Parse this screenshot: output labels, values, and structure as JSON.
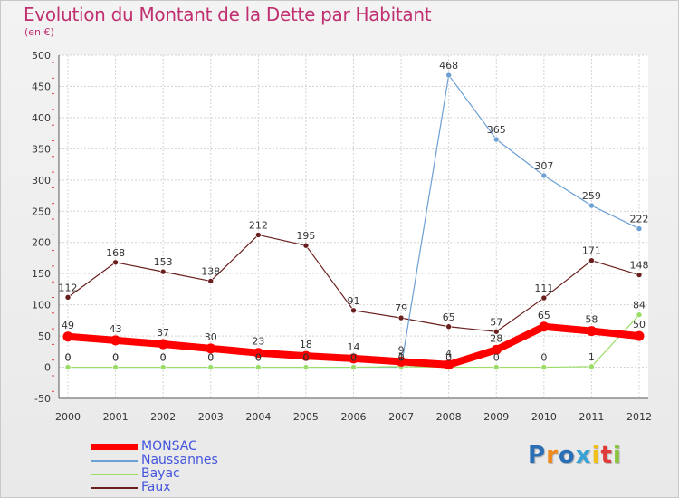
{
  "title": "Evolution du Montant de la Dette par Habitant",
  "subtitle": "(en €)",
  "logo": {
    "text": "Proxiti",
    "colors": [
      "#2a6fb5",
      "#f08a1c",
      "#2a6fb5",
      "#3aa3d6",
      "#f0c01c",
      "#e03a3a",
      "#8cc43c"
    ]
  },
  "chart_data": {
    "type": "line",
    "x": [
      "2000",
      "2001",
      "2002",
      "2003",
      "2004",
      "2005",
      "2006",
      "2007",
      "2008",
      "2009",
      "2010",
      "2011",
      "2012"
    ],
    "ylim": [
      -50,
      500
    ],
    "yticks": [
      "-50",
      "0",
      "50",
      "100",
      "150",
      "200",
      "250",
      "300",
      "350",
      "400",
      "450",
      "500"
    ],
    "grid": true,
    "legend": "bottom-left",
    "series": [
      {
        "name": "MONSAC",
        "color": "#ff0000",
        "width": 8,
        "marker": 5.5,
        "values": [
          49,
          43,
          37,
          30,
          23,
          18,
          14,
          9,
          4,
          28,
          65,
          58,
          50
        ],
        "labels": [
          "49",
          "43",
          "37",
          "30",
          "23",
          "18",
          "14",
          "9",
          "4",
          "28",
          "65",
          "58",
          "50"
        ]
      },
      {
        "name": "Naussannes",
        "color": "#6c9fd3",
        "width": 1.2,
        "marker": 3,
        "values": [
          0,
          0,
          0,
          0,
          0,
          0,
          0,
          0,
          468,
          365,
          307,
          259,
          222
        ],
        "labels": [
          "0",
          "0",
          "0",
          "0",
          "0",
          "0",
          "0",
          "0",
          "468",
          "365",
          "307",
          "259",
          "222"
        ]
      },
      {
        "name": "Bayac",
        "color": "#99dd66",
        "width": 1.2,
        "marker": 3,
        "values": [
          0,
          0,
          0,
          0,
          0,
          0,
          0,
          1,
          0,
          0,
          0,
          1,
          84
        ],
        "labels": [
          "0",
          "0",
          "0",
          "0",
          "0",
          "0",
          "0",
          "1",
          "0",
          "0",
          "0",
          "1",
          "84"
        ]
      },
      {
        "name": "Faux",
        "color": "#6a1f1f",
        "width": 1.2,
        "marker": 3,
        "values": [
          112,
          168,
          153,
          138,
          212,
          195,
          91,
          79,
          65,
          57,
          111,
          171,
          148
        ],
        "labels": [
          "112",
          "168",
          "153",
          "138",
          "212",
          "195",
          "91",
          "79",
          "65",
          "57",
          "111",
          "171",
          "148"
        ]
      }
    ]
  }
}
